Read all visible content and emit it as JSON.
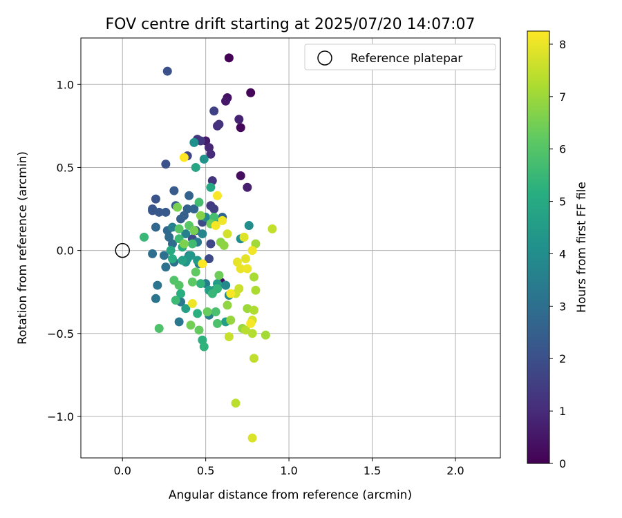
{
  "chart_data": {
    "type": "scatter",
    "title": "FOV centre drift starting at 2025/07/20 14:07:07",
    "xlabel": "Angular distance from reference (arcmin)",
    "ylabel": "Rotation from reference (arcmin)",
    "xlim": [
      -0.25,
      2.27
    ],
    "ylim": [
      -1.25,
      1.28
    ],
    "xticks": [
      0.0,
      0.5,
      1.0,
      1.5,
      2.0
    ],
    "xtick_labels": [
      "0.0",
      "0.5",
      "1.0",
      "1.5",
      "2.0"
    ],
    "yticks": [
      -1.0,
      -0.5,
      0.0,
      0.5,
      1.0
    ],
    "ytick_labels": [
      "−1.0",
      "−0.5",
      "0.0",
      "0.5",
      "1.0"
    ],
    "grid": true,
    "legend": {
      "position": "top-right",
      "entries": [
        "Reference platepar"
      ]
    },
    "reference_point": {
      "x": 0.0,
      "y": 0.0,
      "marker": "open-circle",
      "color": "#000000"
    },
    "colorbar": {
      "label": "Hours from first FF file",
      "colormap": "viridis",
      "range": [
        0,
        8.25
      ],
      "ticks": [
        0,
        1,
        2,
        3,
        4,
        5,
        6,
        7,
        8
      ],
      "tick_labels": [
        "0",
        "1",
        "2",
        "3",
        "4",
        "5",
        "6",
        "7",
        "8"
      ]
    },
    "series": [
      {
        "points": [
          [
            0.64,
            1.16,
            0.05
          ],
          [
            0.77,
            0.95,
            0.1
          ],
          [
            0.71,
            0.74,
            0.15
          ],
          [
            0.71,
            0.45,
            0.3
          ],
          [
            0.59,
            -0.19,
            0.35
          ],
          [
            0.63,
            0.92,
            0.4
          ],
          [
            0.62,
            0.9,
            0.55
          ],
          [
            0.5,
            0.66,
            0.6
          ],
          [
            0.75,
            0.38,
            0.7
          ],
          [
            0.7,
            0.79,
            0.8
          ],
          [
            0.52,
            0.62,
            0.9
          ],
          [
            0.53,
            0.58,
            1.0
          ],
          [
            0.57,
            0.75,
            1.1
          ],
          [
            0.58,
            0.76,
            1.2
          ],
          [
            0.54,
            0.42,
            1.25
          ],
          [
            0.45,
            0.67,
            1.3
          ],
          [
            0.47,
            0.66,
            1.35
          ],
          [
            0.53,
            0.27,
            1.4
          ],
          [
            0.62,
            -0.21,
            1.45
          ],
          [
            0.55,
            0.25,
            1.5
          ],
          [
            0.55,
            0.84,
            1.6
          ],
          [
            0.39,
            0.57,
            1.7
          ],
          [
            0.53,
            0.04,
            1.75
          ],
          [
            0.52,
            -0.05,
            1.8
          ],
          [
            0.48,
            0.17,
            1.85
          ],
          [
            0.42,
            0.07,
            1.9
          ],
          [
            0.44,
            0.12,
            1.95
          ],
          [
            0.27,
            1.08,
            2.0
          ],
          [
            0.26,
            0.52,
            2.05
          ],
          [
            0.2,
            0.31,
            2.1
          ],
          [
            0.18,
            0.25,
            2.15
          ],
          [
            0.18,
            0.24,
            2.2
          ],
          [
            0.22,
            0.23,
            2.25
          ],
          [
            0.26,
            0.23,
            2.3
          ],
          [
            0.31,
            0.36,
            2.35
          ],
          [
            0.32,
            0.27,
            2.4
          ],
          [
            0.35,
            0.19,
            2.45
          ],
          [
            0.37,
            0.21,
            2.5
          ],
          [
            0.39,
            0.25,
            2.55
          ],
          [
            0.4,
            0.33,
            2.6
          ],
          [
            0.43,
            0.25,
            2.65
          ],
          [
            0.6,
            0.2,
            2.7
          ],
          [
            0.2,
            0.14,
            2.75
          ],
          [
            0.27,
            0.12,
            2.8
          ],
          [
            0.28,
            0.08,
            2.85
          ],
          [
            0.3,
            0.04,
            2.9
          ],
          [
            0.18,
            -0.02,
            2.95
          ],
          [
            0.25,
            -0.03,
            3.0
          ],
          [
            0.26,
            -0.1,
            3.05
          ],
          [
            0.31,
            -0.07,
            3.1
          ],
          [
            0.2,
            -0.29,
            3.15
          ],
          [
            0.21,
            -0.21,
            3.2
          ],
          [
            0.34,
            -0.43,
            3.25
          ],
          [
            0.35,
            -0.31,
            3.3
          ],
          [
            0.45,
            0.05,
            3.35
          ],
          [
            0.46,
            -0.08,
            3.4
          ],
          [
            0.5,
            -0.2,
            3.45
          ],
          [
            0.52,
            -0.39,
            3.5
          ],
          [
            0.3,
            0.14,
            3.55
          ],
          [
            0.38,
            0.1,
            3.6
          ],
          [
            0.4,
            -0.03,
            3.65
          ],
          [
            0.48,
            0.1,
            3.7
          ],
          [
            0.5,
            0.2,
            3.75
          ],
          [
            0.57,
            0.18,
            3.8
          ],
          [
            0.62,
            -0.21,
            3.85
          ],
          [
            0.64,
            -0.27,
            3.9
          ],
          [
            0.71,
            0.07,
            3.95
          ],
          [
            0.76,
            0.15,
            4.0
          ],
          [
            0.43,
            0.65,
            4.1
          ],
          [
            0.49,
            0.55,
            4.2
          ],
          [
            0.38,
            -0.07,
            4.25
          ],
          [
            0.39,
            -0.05,
            4.3
          ],
          [
            0.41,
            -0.03,
            4.35
          ],
          [
            0.45,
            -0.06,
            4.4
          ],
          [
            0.55,
            -0.24,
            4.45
          ],
          [
            0.57,
            -0.2,
            4.5
          ],
          [
            0.52,
            -0.24,
            4.55
          ],
          [
            0.62,
            -0.43,
            4.6
          ],
          [
            0.38,
            -0.35,
            4.65
          ],
          [
            0.36,
            -0.06,
            4.7
          ],
          [
            0.44,
            0.5,
            4.8
          ],
          [
            0.53,
            0.38,
            4.9
          ],
          [
            0.29,
            0.0,
            5.0
          ],
          [
            0.36,
            0.02,
            5.05
          ],
          [
            0.3,
            -0.05,
            5.1
          ],
          [
            0.35,
            -0.26,
            5.15
          ],
          [
            0.45,
            -0.38,
            5.2
          ],
          [
            0.48,
            -0.54,
            5.25
          ],
          [
            0.49,
            -0.58,
            5.3
          ],
          [
            0.47,
            -0.2,
            5.35
          ],
          [
            0.57,
            -0.23,
            5.4
          ],
          [
            0.54,
            -0.26,
            5.45
          ],
          [
            0.13,
            0.08,
            5.5
          ],
          [
            0.32,
            -0.3,
            5.55
          ],
          [
            0.34,
            0.07,
            5.6
          ],
          [
            0.42,
            0.04,
            5.65
          ],
          [
            0.46,
            0.29,
            5.7
          ],
          [
            0.55,
            0.2,
            5.75
          ],
          [
            0.56,
            -0.37,
            5.8
          ],
          [
            0.57,
            -0.44,
            5.85
          ],
          [
            0.22,
            -0.47,
            5.9
          ],
          [
            0.31,
            -0.18,
            5.95
          ],
          [
            0.34,
            -0.21,
            6.0
          ],
          [
            0.34,
            0.13,
            6.05
          ],
          [
            0.4,
            0.15,
            6.1
          ],
          [
            0.42,
            -0.19,
            6.15
          ],
          [
            0.44,
            -0.13,
            6.2
          ],
          [
            0.46,
            -0.48,
            6.25
          ],
          [
            0.51,
            -0.37,
            6.3
          ],
          [
            0.53,
            0.16,
            6.35
          ],
          [
            0.58,
            -0.15,
            6.4
          ],
          [
            0.41,
            -0.45,
            6.45
          ],
          [
            0.43,
            0.12,
            6.5
          ],
          [
            0.33,
            0.26,
            6.55
          ],
          [
            0.37,
            0.04,
            6.6
          ],
          [
            0.47,
            0.21,
            6.7
          ],
          [
            0.59,
            0.05,
            6.75
          ],
          [
            0.61,
            0.03,
            6.8
          ],
          [
            0.63,
            -0.33,
            6.85
          ],
          [
            0.65,
            -0.42,
            6.9
          ],
          [
            0.72,
            -0.47,
            6.95
          ],
          [
            0.75,
            -0.35,
            7.0
          ],
          [
            0.8,
            0.04,
            7.05
          ],
          [
            0.86,
            -0.51,
            7.1
          ],
          [
            0.79,
            -0.16,
            7.15
          ],
          [
            0.8,
            -0.24,
            7.2
          ],
          [
            0.79,
            -0.36,
            7.25
          ],
          [
            0.78,
            -0.5,
            7.3
          ],
          [
            0.74,
            -0.48,
            7.35
          ],
          [
            0.68,
            -0.92,
            7.4
          ],
          [
            0.79,
            -0.65,
            7.45
          ],
          [
            0.9,
            0.13,
            7.5
          ],
          [
            0.64,
            -0.52,
            7.55
          ],
          [
            0.7,
            -0.23,
            7.6
          ],
          [
            0.68,
            -0.26,
            7.65
          ],
          [
            0.63,
            0.1,
            7.7
          ],
          [
            0.78,
            -0.42,
            7.75
          ],
          [
            0.78,
            -1.13,
            7.8
          ],
          [
            0.73,
            0.08,
            7.85
          ],
          [
            0.74,
            -0.05,
            7.9
          ],
          [
            0.69,
            -0.07,
            7.95
          ],
          [
            0.71,
            -0.11,
            8.0
          ],
          [
            0.75,
            -0.11,
            8.05
          ],
          [
            0.78,
            0.0,
            8.1
          ],
          [
            0.77,
            -0.44,
            8.15
          ],
          [
            0.57,
            0.33,
            8.2
          ],
          [
            0.48,
            -0.08,
            8.25
          ],
          [
            0.37,
            0.56,
            8.25
          ],
          [
            0.65,
            -0.26,
            8.2
          ],
          [
            0.56,
            0.15,
            8.15
          ],
          [
            0.6,
            0.18,
            8.1
          ],
          [
            0.42,
            -0.32,
            8.05
          ]
        ]
      }
    ]
  }
}
